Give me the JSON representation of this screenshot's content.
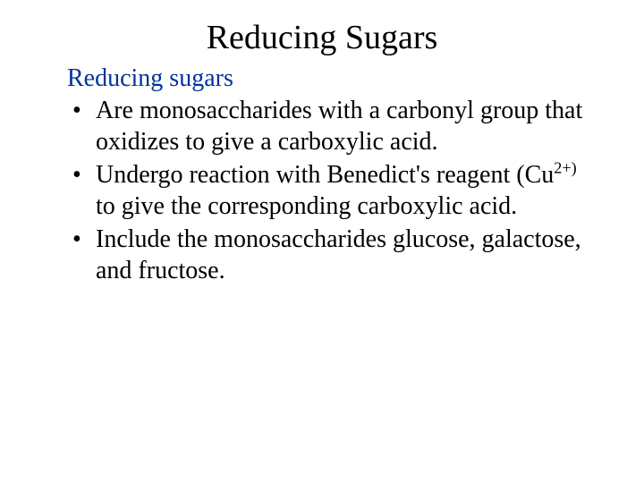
{
  "title": "Reducing Sugars",
  "subtitle": "Reducing sugars",
  "bullets": {
    "b0": "Are monosaccharides with a carbonyl group that oxidizes to give a carboxylic acid.",
    "b1_part1": "Undergo reaction with Benedict's reagent (Cu",
    "b1_sup": "2+)",
    "b1_part2": " to give the corresponding carboxylic acid.",
    "b2": "Include the monosaccharides glucose, galactose, and fructose."
  },
  "colors": {
    "title": "#000000",
    "subtitle": "#003399",
    "body": "#000000",
    "background": "#ffffff"
  },
  "typography": {
    "title_fontsize": 38,
    "subtitle_fontsize": 28,
    "body_fontsize": 28,
    "font_family": "Times New Roman"
  }
}
